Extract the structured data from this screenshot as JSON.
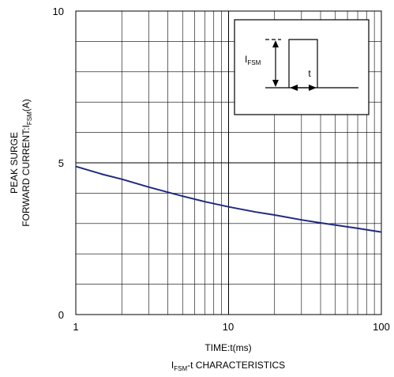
{
  "chart_data": {
    "type": "line",
    "x_scale": "log",
    "xlim": [
      1,
      100
    ],
    "ylim": [
      0,
      10
    ],
    "x_ticks": [
      "1",
      "10",
      "100"
    ],
    "y_ticks": [
      "0",
      "5",
      "10"
    ],
    "grid": true,
    "legend": "none",
    "series": [
      {
        "color": "#1f2a80",
        "x": [
          1,
          1.5,
          2,
          3,
          4,
          5,
          7,
          10,
          15,
          20,
          30,
          40,
          50,
          70,
          100
        ],
        "y": [
          4.88,
          4.62,
          4.46,
          4.2,
          4.03,
          3.9,
          3.72,
          3.55,
          3.38,
          3.28,
          3.12,
          3.02,
          2.95,
          2.84,
          2.72
        ]
      }
    ],
    "ylabel": {
      "line1": "PEAK SURGE",
      "line2_main": "FORWARD CURRENT:I",
      "line2_sub": "FSM",
      "line2_end": "(A)"
    },
    "xlabel": "TIME:t(ms)",
    "title": {
      "main": "I",
      "sub": "FSM",
      "end": "-t CHARACTERISTICS"
    },
    "inset": {
      "amplitude_main": "I",
      "amplitude_sub": "FSM",
      "width_label": "t"
    }
  }
}
